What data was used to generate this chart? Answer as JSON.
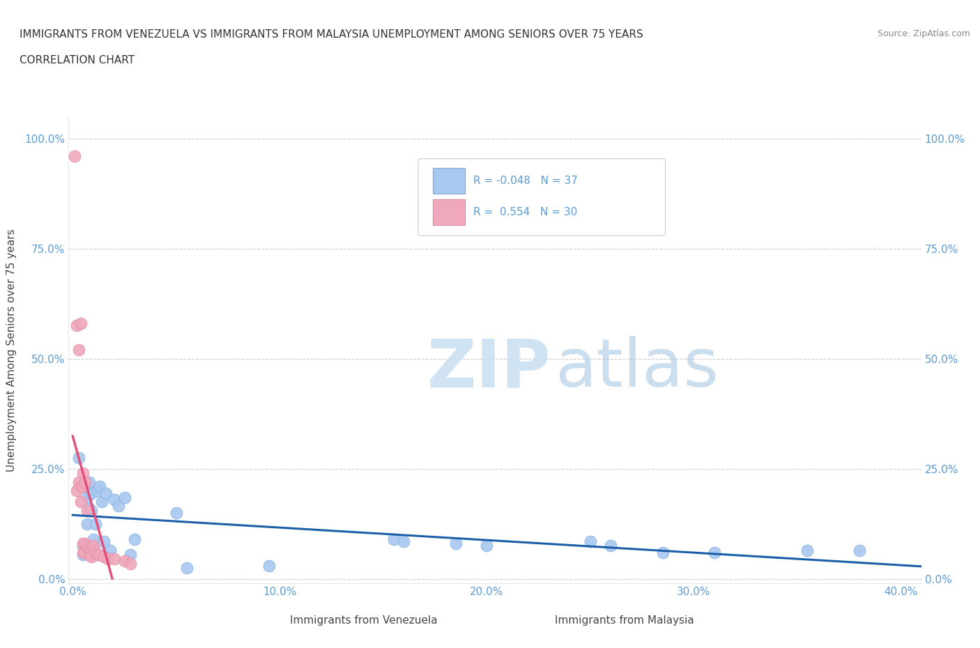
{
  "title_line1": "IMMIGRANTS FROM VENEZUELA VS IMMIGRANTS FROM MALAYSIA UNEMPLOYMENT AMONG SENIORS OVER 75 YEARS",
  "title_line2": "CORRELATION CHART",
  "source": "Source: ZipAtlas.com",
  "ylabel": "Unemployment Among Seniors over 75 years",
  "xlim": [
    -0.002,
    0.41
  ],
  "ylim": [
    -0.01,
    1.05
  ],
  "xtick_vals": [
    0.0,
    0.1,
    0.2,
    0.3,
    0.4
  ],
  "ytick_vals": [
    0.0,
    0.25,
    0.5,
    0.75,
    1.0
  ],
  "venezuela_color": "#a8c8f0",
  "malaysia_color": "#f0a8bc",
  "venezuela_edge": "#7aaad8",
  "malaysia_edge": "#e088a0",
  "venezuela_R": -0.048,
  "venezuela_N": 37,
  "malaysia_R": 0.554,
  "malaysia_N": 30,
  "title_color": "#333333",
  "axis_color": "#5b9bd5",
  "tick_color": "#5b9bd5",
  "grid_color": "#cccccc",
  "legend_label_venezuela": "Immigrants from Venezuela",
  "legend_label_malaysia": "Immigrants from Malaysia",
  "venezuela_line_color": "#1a5fa8",
  "malaysia_line_color": "#e0507a",
  "malaysia_dashed_color": "#e0a0b4",
  "venezuela_x": [
    0.003,
    0.005,
    0.005,
    0.006,
    0.007,
    0.007,
    0.008,
    0.008,
    0.009,
    0.009,
    0.01,
    0.01,
    0.011,
    0.012,
    0.013,
    0.014,
    0.015,
    0.016,
    0.018,
    0.02,
    0.022,
    0.025,
    0.028,
    0.03,
    0.05,
    0.055,
    0.095,
    0.155,
    0.16,
    0.185,
    0.2,
    0.25,
    0.26,
    0.285,
    0.31,
    0.355,
    0.38
  ],
  "venezuela_y": [
    0.275,
    0.055,
    0.075,
    0.21,
    0.125,
    0.185,
    0.16,
    0.22,
    0.155,
    0.195,
    0.07,
    0.09,
    0.125,
    0.2,
    0.21,
    0.175,
    0.085,
    0.195,
    0.065,
    0.18,
    0.165,
    0.185,
    0.055,
    0.09,
    0.15,
    0.025,
    0.03,
    0.09,
    0.085,
    0.08,
    0.075,
    0.085,
    0.075,
    0.06,
    0.06,
    0.065,
    0.065
  ],
  "malaysia_x": [
    0.001,
    0.002,
    0.002,
    0.003,
    0.003,
    0.004,
    0.004,
    0.004,
    0.005,
    0.005,
    0.005,
    0.005,
    0.006,
    0.006,
    0.006,
    0.007,
    0.007,
    0.008,
    0.008,
    0.009,
    0.009,
    0.01,
    0.011,
    0.012,
    0.013,
    0.015,
    0.017,
    0.02,
    0.025,
    0.028
  ],
  "malaysia_y": [
    0.96,
    0.575,
    0.2,
    0.52,
    0.22,
    0.58,
    0.21,
    0.175,
    0.24,
    0.21,
    0.08,
    0.06,
    0.22,
    0.08,
    0.06,
    0.155,
    0.075,
    0.07,
    0.055,
    0.065,
    0.05,
    0.075,
    0.06,
    0.055,
    0.055,
    0.05,
    0.045,
    0.045,
    0.04,
    0.035
  ],
  "watermark_zip_color": "#c8dff0",
  "watermark_atlas_color": "#a0c4e0"
}
